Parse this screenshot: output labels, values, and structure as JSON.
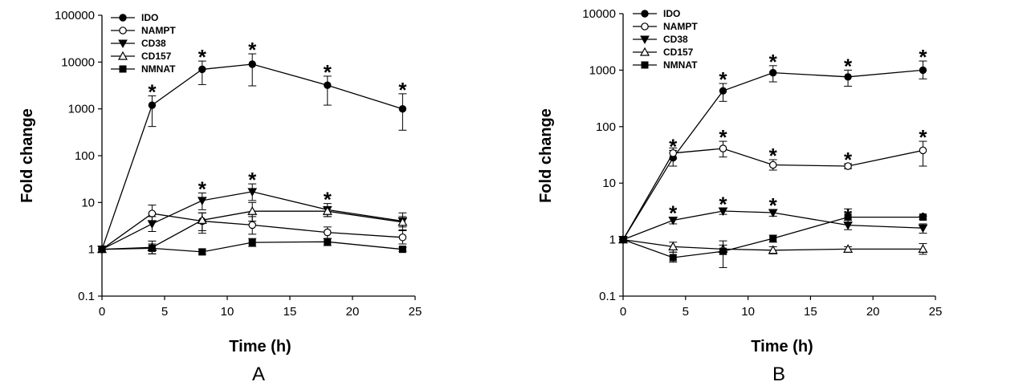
{
  "chart_data": [
    {
      "type": "line",
      "panel": "A",
      "xlabel": "Time (h)",
      "ylabel": "Fold change",
      "yscale": "log",
      "xlim": [
        0,
        25
      ],
      "ylim": [
        0.1,
        100000
      ],
      "xticks": [
        "0",
        "5",
        "10",
        "15",
        "20",
        "25"
      ],
      "yticks": [
        "0.1",
        "1",
        "10",
        "100",
        "1000",
        "10000",
        "100000"
      ],
      "legend_position": "top-left",
      "x": [
        0,
        4,
        8,
        12,
        18,
        24
      ],
      "series": [
        {
          "name": "IDO",
          "marker": "circle-filled",
          "values": [
            1,
            1200,
            7000,
            9000,
            3200,
            1000
          ],
          "err_hi": [
            1,
            1900,
            10500,
            15000,
            5000,
            2100
          ],
          "err_lo": [
            1,
            420,
            3300,
            3100,
            1200,
            350
          ],
          "sig": [
            false,
            true,
            true,
            true,
            true,
            true
          ]
        },
        {
          "name": "NAMPT",
          "marker": "circle-open",
          "values": [
            1,
            5.8,
            4,
            3.3,
            2.3,
            1.8
          ],
          "err_hi": [
            1,
            8.8,
            6,
            5,
            3,
            2.5
          ],
          "err_lo": [
            1,
            4,
            2.2,
            2.1,
            1.7,
            1.3
          ],
          "sig": [
            false,
            false,
            false,
            false,
            false,
            false
          ]
        },
        {
          "name": "CD38",
          "marker": "triangle-down-filled",
          "values": [
            1,
            3.5,
            11,
            17,
            7,
            4
          ],
          "err_hi": [
            1,
            5,
            16,
            25,
            9.5,
            6
          ],
          "err_lo": [
            1,
            2.4,
            7,
            11,
            5,
            2.6
          ],
          "sig": [
            false,
            false,
            true,
            true,
            true,
            false
          ]
        },
        {
          "name": "CD157",
          "marker": "triangle-up-open",
          "values": [
            1,
            1.1,
            4.2,
            6.5,
            6.5,
            3.8
          ],
          "err_hi": [
            1,
            1.5,
            6,
            10,
            8,
            5
          ],
          "err_lo": [
            1,
            0.8,
            2.5,
            4,
            5,
            3
          ],
          "sig": [
            false,
            false,
            false,
            false,
            false,
            false
          ]
        },
        {
          "name": "NMNAT",
          "marker": "square-filled",
          "values": [
            1,
            1.05,
            0.88,
            1.4,
            1.45,
            1
          ],
          "err_hi": [
            1,
            1.3,
            1,
            1.7,
            1.7,
            1.1
          ],
          "err_lo": [
            1,
            0.8,
            0.78,
            1.15,
            1.2,
            0.9
          ],
          "sig": [
            false,
            false,
            false,
            false,
            false,
            false
          ]
        }
      ]
    },
    {
      "type": "line",
      "panel": "B",
      "xlabel": "Time (h)",
      "ylabel": "Fold change",
      "yscale": "log",
      "xlim": [
        0,
        25
      ],
      "ylim": [
        0.1,
        10000
      ],
      "xticks": [
        "0",
        "5",
        "10",
        "15",
        "20",
        "25"
      ],
      "yticks": [
        "0.1",
        "1",
        "10",
        "100",
        "1000",
        "10000"
      ],
      "legend_position": "top-left",
      "x": [
        0,
        4,
        8,
        12,
        18,
        24
      ],
      "series": [
        {
          "name": "IDO",
          "marker": "circle-filled",
          "values": [
            1,
            28,
            430,
            900,
            760,
            1000
          ],
          "err_hi": [
            1,
            38,
            580,
            1200,
            1000,
            1450
          ],
          "err_lo": [
            1,
            20,
            280,
            620,
            520,
            700
          ],
          "sig": [
            false,
            true,
            true,
            true,
            true,
            true
          ]
        },
        {
          "name": "NAMPT",
          "marker": "circle-open",
          "values": [
            1,
            34,
            41,
            21,
            20,
            38
          ],
          "err_hi": [
            1,
            42,
            55,
            26,
            22,
            55
          ],
          "err_lo": [
            1,
            27,
            29,
            17,
            18,
            20
          ],
          "sig": [
            false,
            false,
            true,
            true,
            true,
            true
          ]
        },
        {
          "name": "CD38",
          "marker": "triangle-down-filled",
          "values": [
            1,
            2.2,
            3.2,
            3,
            1.8,
            1.6
          ],
          "err_hi": [
            1,
            2.5,
            3.6,
            3.4,
            2.2,
            1.9
          ],
          "err_lo": [
            1,
            1.9,
            2.8,
            2.6,
            1.5,
            1.3
          ],
          "sig": [
            false,
            true,
            true,
            true,
            true,
            true
          ]
        },
        {
          "name": "CD157",
          "marker": "triangle-up-open",
          "values": [
            1,
            0.75,
            0.68,
            0.65,
            0.68,
            0.68
          ],
          "err_hi": [
            1,
            0.9,
            0.8,
            0.75,
            0.75,
            0.85
          ],
          "err_lo": [
            1,
            0.6,
            0.55,
            0.56,
            0.6,
            0.55
          ],
          "sig": [
            false,
            false,
            false,
            false,
            false,
            false
          ]
        },
        {
          "name": "NMNAT",
          "marker": "square-filled",
          "values": [
            1,
            0.48,
            0.62,
            1.05,
            2.5,
            2.5
          ],
          "err_hi": [
            1,
            0.6,
            0.95,
            1.2,
            3.5,
            2.6
          ],
          "err_lo": [
            1,
            0.4,
            0.32,
            0.9,
            2,
            2.3
          ],
          "sig": [
            false,
            false,
            false,
            false,
            false,
            false
          ]
        }
      ]
    }
  ]
}
